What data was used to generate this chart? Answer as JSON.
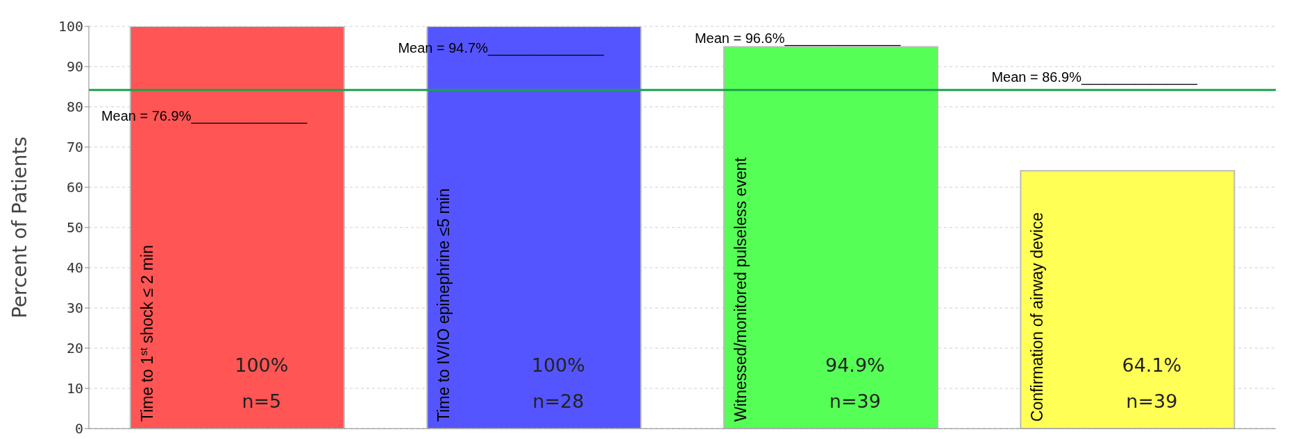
{
  "chart_data": {
    "type": "bar",
    "ylabel": "Percent of Patients",
    "categories": [
      "Time to 1$^{st}$ shock ≤ 2 min",
      "Time to IV/IO epinephrine ≤5 min",
      "Witnessed/monitored pulseless event",
      "Confirmation of airway device"
    ],
    "values": [
      100,
      100,
      94.9,
      64.1
    ],
    "colors": [
      "#ff5555",
      "#5555ff",
      "#55ff55",
      "#ffff55"
    ],
    "value_labels": [
      "100%\nn=5",
      "100%\nn=28",
      "94.9%\nn=39",
      "64.1%\nn=39"
    ],
    "ylim": [
      0,
      100
    ],
    "yticks": [
      0,
      10,
      20,
      30,
      40,
      50,
      60,
      70,
      80,
      90,
      100
    ],
    "grid": "y",
    "ref_lines": [
      {
        "axis": "y",
        "value": 84.2,
        "color": "#1aa34a"
      }
    ],
    "annotations": [
      "Mean = 76.9%_______________",
      "Mean = 94.7%_______________",
      "Mean = 96.6%_______________",
      "Mean = 86.9%_______________"
    ]
  }
}
